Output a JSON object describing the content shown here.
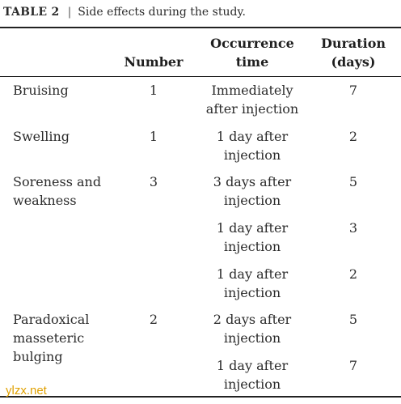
{
  "caption": {
    "label": "TABLE 2",
    "separator": "|",
    "title": "Side effects during the study."
  },
  "headers": {
    "number": "Number",
    "occurrence_1": "Occurrence",
    "occurrence_2": "time",
    "duration_1": "Duration",
    "duration_2": "(days)"
  },
  "rows": [
    {
      "side_1": "Bruising",
      "side_2": "",
      "side_3": "",
      "number": "1",
      "occ_1": "Immediately",
      "occ_2": "after injection",
      "duration": "7"
    },
    {
      "side_1": "Swelling",
      "side_2": "",
      "side_3": "",
      "number": "1",
      "occ_1": "1 day after",
      "occ_2": "injection",
      "duration": "2"
    },
    {
      "side_1": "Soreness and",
      "side_2": "weakness",
      "side_3": "",
      "number": "3",
      "occ_1": "3 days after",
      "occ_2": "injection",
      "duration": "5"
    },
    {
      "side_1": "",
      "side_2": "",
      "side_3": "",
      "number": "",
      "occ_1": "1 day after",
      "occ_2": "injection",
      "duration": "3"
    },
    {
      "side_1": "",
      "side_2": "",
      "side_3": "",
      "number": "",
      "occ_1": "1 day after",
      "occ_2": "injection",
      "duration": "2"
    },
    {
      "side_1": "Paradoxical",
      "side_2": "masseteric",
      "side_3": "bulging",
      "number": "2",
      "occ_1": "2 days after",
      "occ_2": "injection",
      "duration": "5"
    },
    {
      "side_1": "",
      "side_2": "",
      "side_3": "",
      "number": "",
      "occ_1": "1 day after",
      "occ_2": "injection",
      "duration": "7"
    }
  ],
  "watermark": "ylzx.net"
}
